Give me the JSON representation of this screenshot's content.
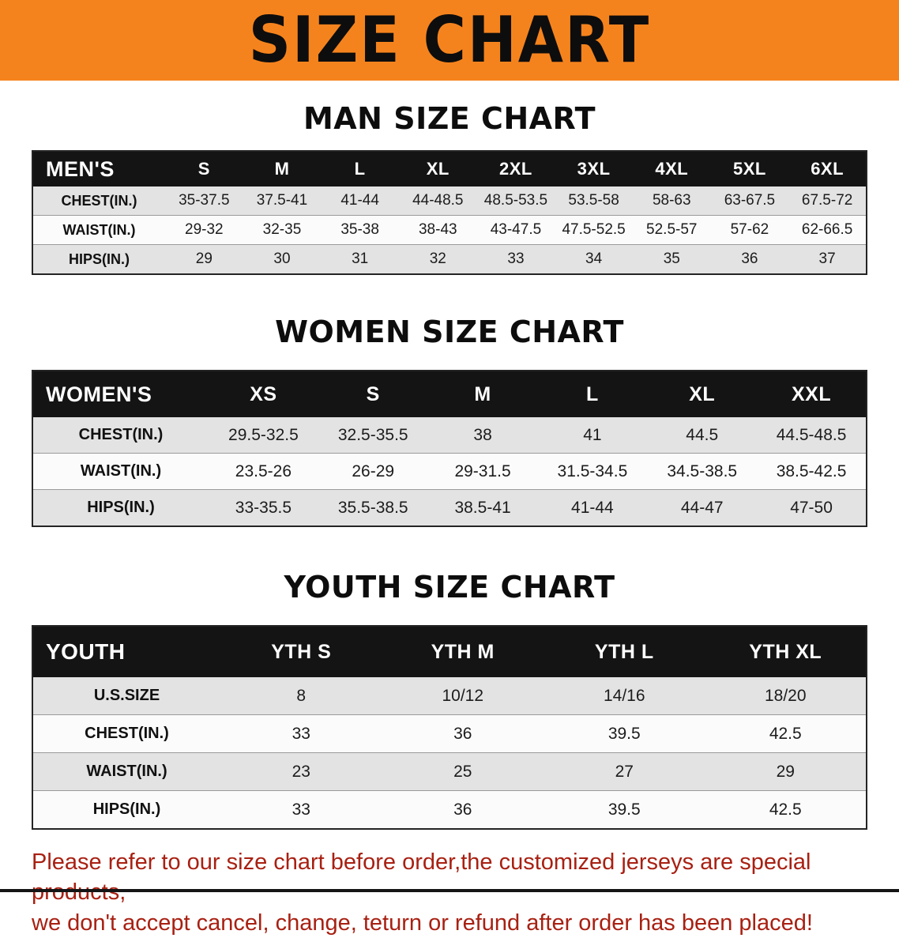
{
  "banner": {
    "title": "SIZE CHART",
    "bg_color": "#f5831d",
    "text_color": "#0d0d0d"
  },
  "sections": [
    {
      "id": "men",
      "heading": "MAN SIZE CHART",
      "table": {
        "header": [
          "MEN'S",
          "S",
          "M",
          "L",
          "XL",
          "2XL",
          "3XL",
          "4XL",
          "5XL",
          "6XL"
        ],
        "rows": [
          {
            "label": "CHEST(IN.)",
            "values": [
              "35-37.5",
              "37.5-41",
              "41-44",
              "44-48.5",
              "48.5-53.5",
              "53.5-58",
              "58-63",
              "63-67.5",
              "67.5-72"
            ]
          },
          {
            "label": "WAIST(IN.)",
            "values": [
              "29-32",
              "32-35",
              "35-38",
              "38-43",
              "43-47.5",
              "47.5-52.5",
              "52.5-57",
              "57-62",
              "62-66.5"
            ]
          },
          {
            "label": "HIPS(IN.)",
            "values": [
              "29",
              "30",
              "31",
              "32",
              "33",
              "34",
              "35",
              "36",
              "37"
            ]
          }
        ]
      }
    },
    {
      "id": "women",
      "heading": "WOMEN SIZE CHART",
      "table": {
        "header": [
          "WOMEN'S",
          "XS",
          "S",
          "M",
          "L",
          "XL",
          "XXL"
        ],
        "rows": [
          {
            "label": "CHEST(IN.)",
            "values": [
              "29.5-32.5",
              "32.5-35.5",
              "38",
              "41",
              "44.5",
              "44.5-48.5"
            ]
          },
          {
            "label": "WAIST(IN.)",
            "values": [
              "23.5-26",
              "26-29",
              "29-31.5",
              "31.5-34.5",
              "34.5-38.5",
              "38.5-42.5"
            ]
          },
          {
            "label": "HIPS(IN.)",
            "values": [
              "33-35.5",
              "35.5-38.5",
              "38.5-41",
              "41-44",
              "44-47",
              "47-50"
            ]
          }
        ]
      }
    },
    {
      "id": "youth",
      "heading": "YOUTH SIZE CHART",
      "table": {
        "header": [
          "YOUTH",
          "YTH S",
          "YTH M",
          "YTH L",
          "YTH XL"
        ],
        "rows": [
          {
            "label": "U.S.SIZE",
            "values": [
              "8",
              "10/12",
              "14/16",
              "18/20"
            ]
          },
          {
            "label": "CHEST(IN.)",
            "values": [
              "33",
              "36",
              "39.5",
              "42.5"
            ]
          },
          {
            "label": "WAIST(IN.)",
            "values": [
              "23",
              "25",
              "27",
              "29"
            ]
          },
          {
            "label": "HIPS(IN.)",
            "values": [
              "33",
              "36",
              "39.5",
              "42.5"
            ]
          }
        ]
      }
    }
  ],
  "footer": {
    "lines": [
      "Please refer to our size chart before order,the customized jerseys are special products,",
      "we don't accept cancel, change, teturn or refund after order has been placed!"
    ],
    "color": "#a82012"
  },
  "theme": {
    "table_header_bg": "#141414",
    "table_header_text": "#ffffff",
    "row_shade": "#e3e3e3",
    "row_plain": "#fbfbfb"
  }
}
